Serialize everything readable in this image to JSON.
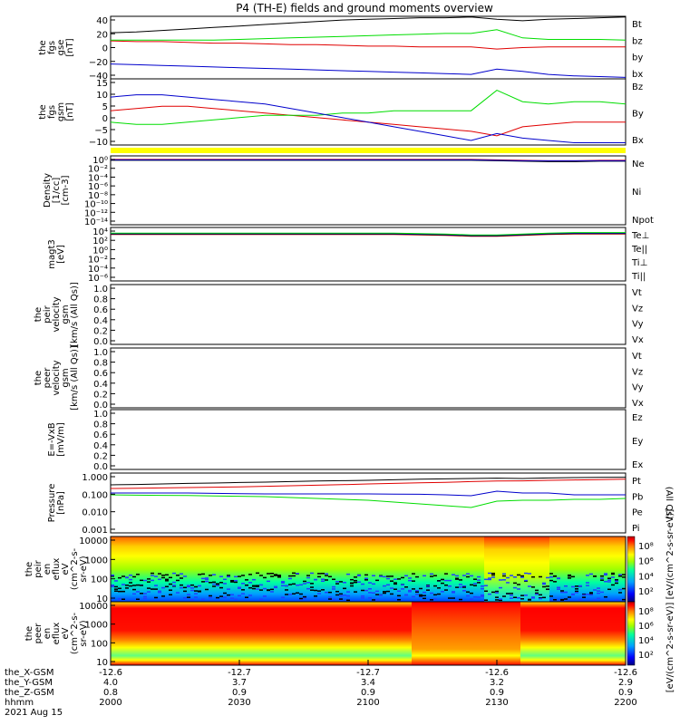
{
  "title": "P4 (TH-E) fields and ground moments overview",
  "colors": {
    "black": "#000000",
    "red": "#e00000",
    "green": "#00dd00",
    "blue": "#0000cc",
    "yellow": "#ffff00"
  },
  "chart_data": [
    {
      "type": "line",
      "id": "p1",
      "ylabel": [
        "the",
        "fgs",
        "gse",
        "[nT]"
      ],
      "yticks": [
        "40",
        "20",
        "0",
        "−20",
        "−40"
      ],
      "ylim": [
        -40,
        44
      ],
      "series": [
        {
          "name": "Bt",
          "color": "black",
          "values": [
            22,
            23,
            25,
            27,
            29,
            31,
            33,
            35,
            37,
            39,
            40,
            41,
            42,
            42,
            43,
            40,
            38,
            40,
            41,
            42,
            43
          ]
        },
        {
          "name": "bz",
          "color": "red",
          "values": [
            11,
            10,
            10,
            9,
            8,
            8,
            7,
            6,
            6,
            5,
            4,
            4,
            3,
            3,
            3,
            0,
            2,
            3,
            3,
            3,
            3
          ]
        },
        {
          "name": "by",
          "color": "green",
          "values": [
            12,
            12,
            12,
            12,
            12,
            13,
            14,
            15,
            16,
            17,
            18,
            19,
            20,
            21,
            21,
            26,
            15,
            13,
            13,
            13,
            12
          ]
        },
        {
          "name": "bx",
          "color": "blue",
          "values": [
            -20,
            -21,
            -22,
            -23,
            -24,
            -25,
            -26,
            -27,
            -28,
            -29,
            -30,
            -31,
            -32,
            -33,
            -34,
            -27,
            -30,
            -34,
            -36,
            -37,
            -38
          ]
        }
      ]
    },
    {
      "type": "line",
      "id": "p2",
      "ylabel": [
        "the",
        "fgs",
        "gsm",
        "[nT]"
      ],
      "yticks": [
        "15",
        "10",
        "5",
        "0",
        "−5",
        "−10"
      ],
      "ylim": [
        -12,
        17
      ],
      "series": [
        {
          "name": "Bz",
          "color": "red",
          "values": [
            3,
            4,
            5,
            5,
            4,
            3,
            2,
            1,
            0,
            -1,
            -2,
            -3,
            -4,
            -5,
            -6,
            -8,
            -4,
            -3,
            -2,
            -2,
            -2
          ]
        },
        {
          "name": "By",
          "color": "green",
          "values": [
            -2,
            -3,
            -3,
            -2,
            -1,
            0,
            1,
            1,
            1,
            2,
            2,
            3,
            3,
            3,
            3,
            12,
            7,
            6,
            7,
            7,
            6
          ]
        },
        {
          "name": "Bx",
          "color": "blue",
          "values": [
            9,
            10,
            10,
            9,
            8,
            7,
            6,
            4,
            2,
            0,
            -2,
            -4,
            -6,
            -8,
            -10,
            -7,
            -9,
            -10,
            -11,
            -11,
            -11
          ]
        }
      ]
    },
    {
      "type": "line",
      "id": "p3",
      "ylabel": [
        "Density",
        "[1/cc]",
        "[cm-3]"
      ],
      "yticks": [
        "10⁰",
        "10⁻²",
        "10⁻⁴",
        "10⁻⁶",
        "10⁻⁸",
        "10⁻¹⁰",
        "10⁻¹²",
        "10⁻¹⁴"
      ],
      "ylim": [
        -15,
        0.5
      ],
      "series": [
        {
          "name": "Ne",
          "color": "red",
          "values": [
            -0.3,
            -0.3,
            -0.3,
            -0.3,
            -0.3,
            -0.3,
            -0.3,
            -0.3,
            -0.3,
            -0.3,
            -0.3,
            -0.3,
            -0.3,
            -0.3,
            -0.3,
            -0.4,
            -0.5,
            -0.6,
            -0.6,
            -0.5,
            -0.5
          ]
        },
        {
          "name": "Ni",
          "color": "black",
          "values": [
            -0.5,
            -0.5,
            -0.5,
            -0.5,
            -0.5,
            -0.5,
            -0.5,
            -0.5,
            -0.5,
            -0.5,
            -0.5,
            -0.5,
            -0.5,
            -0.5,
            -0.5,
            -0.6,
            -0.7,
            -0.8,
            -0.8,
            -0.7,
            -0.7
          ]
        },
        {
          "name": "Npot",
          "color": "blue",
          "values": [
            -0.4,
            -0.4,
            -0.4,
            -0.4,
            -0.4,
            -0.4,
            -0.4,
            -0.4,
            -0.4,
            -0.4,
            -0.4,
            -0.4,
            -0.4,
            -0.4,
            -0.4,
            -0.5,
            -0.6,
            -0.6,
            -0.6,
            -0.6,
            -0.6
          ]
        }
      ]
    },
    {
      "type": "line",
      "id": "p4",
      "ylabel": [
        "magt3",
        "[eV]"
      ],
      "yticks": [
        "10⁴",
        "10²",
        "10⁰",
        "10⁻²",
        "10⁻⁴",
        "10⁻⁶"
      ],
      "ylim": [
        -7,
        4.5
      ],
      "series": [
        {
          "name": "Te⊥",
          "color": "red",
          "values": [
            3,
            3,
            3,
            3,
            3,
            3,
            3,
            3,
            3,
            3,
            3,
            3,
            2.9,
            2.8,
            2.6,
            2.6,
            2.8,
            3,
            3.1,
            3.1,
            3.1
          ]
        },
        {
          "name": "Te||",
          "color": "black",
          "values": [
            3.1,
            3.1,
            3.1,
            3.1,
            3.1,
            3.1,
            3.1,
            3.1,
            3.1,
            3.1,
            3.1,
            3.1,
            3,
            2.9,
            2.7,
            2.7,
            2.9,
            3.1,
            3.2,
            3.2,
            3.2
          ]
        },
        {
          "name": "Ti⊥",
          "color": "blue",
          "values": [
            3.2,
            3.2,
            3.2,
            3.2,
            3.2,
            3.2,
            3.2,
            3.2,
            3.2,
            3.2,
            3.2,
            3.2,
            3.1,
            3,
            2.8,
            2.8,
            3,
            3.2,
            3.3,
            3.3,
            3.3
          ]
        },
        {
          "name": "Ti||",
          "color": "green",
          "values": [
            3.3,
            3.3,
            3.3,
            3.3,
            3.3,
            3.3,
            3.3,
            3.3,
            3.3,
            3.3,
            3.3,
            3.3,
            3.2,
            3.1,
            2.9,
            2.9,
            3.1,
            3.3,
            3.4,
            3.4,
            3.4
          ]
        }
      ]
    },
    {
      "type": "line",
      "id": "p5",
      "ylabel": [
        "the",
        "peir",
        "velocity",
        "gsm",
        "[km/s (All Qs)]"
      ],
      "yticks": [
        "1.0",
        "0.8",
        "0.6",
        "0.4",
        "0.2",
        "0.0"
      ],
      "ylim": [
        0,
        1
      ],
      "series": [
        {
          "name": "Vt",
          "color": "black",
          "values": []
        },
        {
          "name": "Vz",
          "color": "red",
          "values": []
        },
        {
          "name": "Vy",
          "color": "green",
          "values": []
        },
        {
          "name": "Vx",
          "color": "blue",
          "values": []
        }
      ]
    },
    {
      "type": "line",
      "id": "p6",
      "ylabel": [
        "the",
        "peer",
        "velocity",
        "gsm",
        "[km/s (All Qs)]"
      ],
      "yticks": [
        "1.0",
        "0.8",
        "0.6",
        "0.4",
        "0.2",
        "0.0"
      ],
      "ylim": [
        0,
        1
      ],
      "series": [
        {
          "name": "Vt",
          "color": "black",
          "values": []
        },
        {
          "name": "Vz",
          "color": "red",
          "values": []
        },
        {
          "name": "Vy",
          "color": "green",
          "values": []
        },
        {
          "name": "Vx",
          "color": "blue",
          "values": []
        }
      ]
    },
    {
      "type": "line",
      "id": "p7",
      "ylabel": [
        "E=-VxB",
        "[mV/m]"
      ],
      "yticks": [
        "1.0",
        "0.8",
        "0.6",
        "0.4",
        "0.2",
        "0.0"
      ],
      "ylim": [
        0,
        1
      ],
      "series": [
        {
          "name": "Ez",
          "color": "red",
          "values": []
        },
        {
          "name": "Ey",
          "color": "green",
          "values": []
        },
        {
          "name": "Ex",
          "color": "blue",
          "values": []
        }
      ]
    },
    {
      "type": "line",
      "id": "p8",
      "ylabel": [
        "Pressure",
        "[nPa]"
      ],
      "yticks": [
        "1.000",
        "0.100",
        "0.010",
        "0.001"
      ],
      "ylim": [
        -3.2,
        0.1
      ],
      "yscale": "log",
      "legend_note": "(All Qs)",
      "series": [
        {
          "name": "Pt",
          "color": "black",
          "values": [
            -0.55,
            -0.53,
            -0.5,
            -0.47,
            -0.45,
            -0.42,
            -0.4,
            -0.37,
            -0.34,
            -0.32,
            -0.3,
            -0.27,
            -0.24,
            -0.22,
            -0.2,
            -0.18,
            -0.2,
            -0.17,
            -0.15,
            -0.14,
            -0.13
          ]
        },
        {
          "name": "Pb",
          "color": "red",
          "values": [
            -0.75,
            -0.74,
            -0.72,
            -0.7,
            -0.68,
            -0.66,
            -0.63,
            -0.6,
            -0.57,
            -0.54,
            -0.5,
            -0.47,
            -0.44,
            -0.41,
            -0.37,
            -0.34,
            -0.33,
            -0.3,
            -0.28,
            -0.26,
            -0.24
          ]
        },
        {
          "name": "Pe",
          "color": "green",
          "values": [
            -1.1,
            -1.12,
            -1.13,
            -1.14,
            -1.16,
            -1.18,
            -1.2,
            -1.25,
            -1.3,
            -1.35,
            -1.4,
            -1.5,
            -1.6,
            -1.7,
            -1.8,
            -1.45,
            -1.4,
            -1.4,
            -1.35,
            -1.35,
            -1.3
          ]
        },
        {
          "name": "Pi",
          "color": "blue",
          "values": [
            -1.0,
            -1.0,
            -1.0,
            -1.0,
            -1.02,
            -1.04,
            -1.05,
            -1.05,
            -1.05,
            -1.05,
            -1.05,
            -1.06,
            -1.07,
            -1.1,
            -1.15,
            -0.9,
            -1.0,
            -1.0,
            -1.1,
            -1.1,
            -1.1
          ]
        }
      ]
    },
    {
      "type": "heatmap",
      "id": "p9",
      "ylabel": [
        "the",
        "peir",
        "en",
        "eflux",
        "eV",
        "(cm^2-s-",
        "sr-eV)"
      ],
      "yticks": [
        "10000",
        "1000",
        "100",
        "10"
      ],
      "ylim": [
        5,
        20000
      ],
      "yscale": "log"
    },
    {
      "type": "heatmap",
      "id": "p10",
      "ylabel": [
        "the",
        "peer",
        "en",
        "eflux",
        "eV",
        "(cm^2-s-",
        "sr-eV)"
      ],
      "yticks": [
        "10000",
        "1000",
        "100",
        "10"
      ],
      "ylim": [
        5,
        20000
      ],
      "yscale": "log"
    }
  ],
  "colorbar": {
    "label": "[eV/(cm^2-s-sr-eV)] [eV/(cm^2-s-sr-eV)]",
    "upper_ticks": [
      "10⁸",
      "10⁶",
      "10⁴",
      "10²"
    ],
    "lower_ticks": [
      "10⁸",
      "10⁶",
      "10⁴",
      "10²"
    ]
  },
  "x_axis": {
    "row_labels": [
      "the_X-GSM",
      "the_Y-GSM",
      "the_Z-GSM",
      "hhmm",
      "2021 Aug 15"
    ],
    "ticks": [
      {
        "x": "-12.6",
        "y": "4.0",
        "z": "0.8",
        "t": "2000"
      },
      {
        "x": "-12.7",
        "y": "3.7",
        "z": "0.9",
        "t": "2030"
      },
      {
        "x": "-12.7",
        "y": "3.4",
        "z": "0.9",
        "t": "2100"
      },
      {
        "x": "-12.6",
        "y": "3.2",
        "z": "0.9",
        "t": "2130"
      },
      {
        "x": "-12.6",
        "y": "2.9",
        "z": "0.9",
        "t": "2200"
      }
    ]
  }
}
